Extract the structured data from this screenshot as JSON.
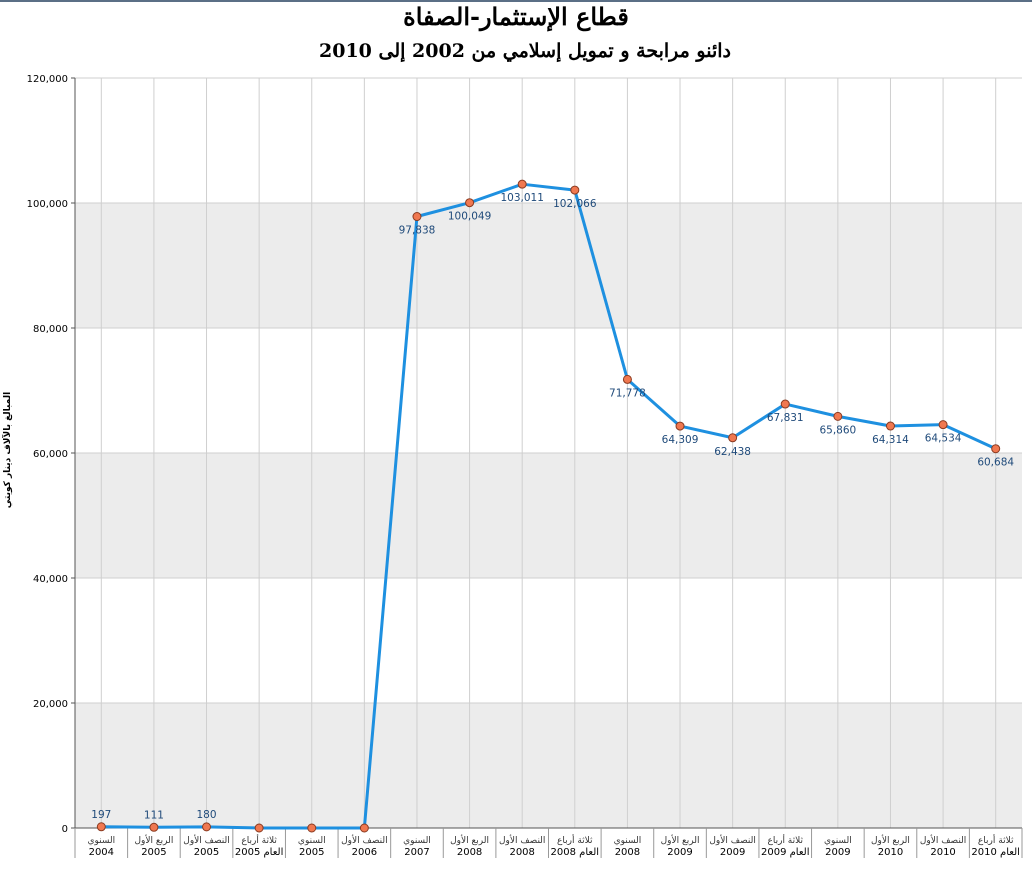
{
  "title": "قطاع الإستثمار-الصفاة",
  "subtitle": "دائنو مرابحة و تمويل إسلامي من 2002 إلى 2010",
  "colors": {
    "line": "#1e90e0",
    "marker_fill": "#f07850",
    "marker_stroke": "#8a3a20",
    "band": "#ececec",
    "grid": "#cfcfcf",
    "label": "#1f4a7a"
  },
  "chart_data": {
    "type": "line",
    "title": "قطاع الإستثمار-الصفاة",
    "subtitle": "دائنو مرابحة و تمويل إسلامي من 2002 إلى 2010",
    "ylabel": "المبالغ بالآلاف دينار كويتي",
    "xlabel": "",
    "ylim": [
      0,
      120000
    ],
    "y_ticks": [
      "0",
      "20,000",
      "40,000",
      "60,000",
      "80,000",
      "100,000",
      "120,000"
    ],
    "grid": true,
    "legend": "none",
    "categories": [
      {
        "label": "السنوي",
        "year": "2004"
      },
      {
        "label": "الربع الأول",
        "year": "2005"
      },
      {
        "label": "النصف الأول",
        "year": "2005"
      },
      {
        "label": "ثلاثة أرباع العام",
        "year": "2005"
      },
      {
        "label": "السنوي",
        "year": "2005"
      },
      {
        "label": "النصف الأول",
        "year": "2006"
      },
      {
        "label": "السنوي",
        "year": "2007"
      },
      {
        "label": "الربع الأول",
        "year": "2008"
      },
      {
        "label": "النصف الأول",
        "year": "2008"
      },
      {
        "label": "ثلاثة أرباع العام",
        "year": "2008"
      },
      {
        "label": "السنوي",
        "year": "2008"
      },
      {
        "label": "الربع الأول",
        "year": "2009"
      },
      {
        "label": "النصف الأول",
        "year": "2009"
      },
      {
        "label": "ثلاثة أرباع العام",
        "year": "2009"
      },
      {
        "label": "السنوي",
        "year": "2009"
      },
      {
        "label": "الربع الأول",
        "year": "2010"
      },
      {
        "label": "النصف الأول",
        "year": "2010"
      },
      {
        "label": "ثلاثة أرباع العام",
        "year": "2010"
      }
    ],
    "values": [
      197,
      111,
      180,
      0,
      0,
      0,
      97838,
      100049,
      103011,
      102066,
      71778,
      64309,
      62438,
      67831,
      65860,
      64314,
      64534,
      60684
    ],
    "data_labels": [
      "197",
      "111",
      "180",
      "",
      "",
      "",
      "97,838",
      "100,049",
      "103,011",
      "102,066",
      "71,778",
      "64,309",
      "62,438",
      "67,831",
      "65,860",
      "64,314",
      "64,534",
      "60,684"
    ]
  }
}
